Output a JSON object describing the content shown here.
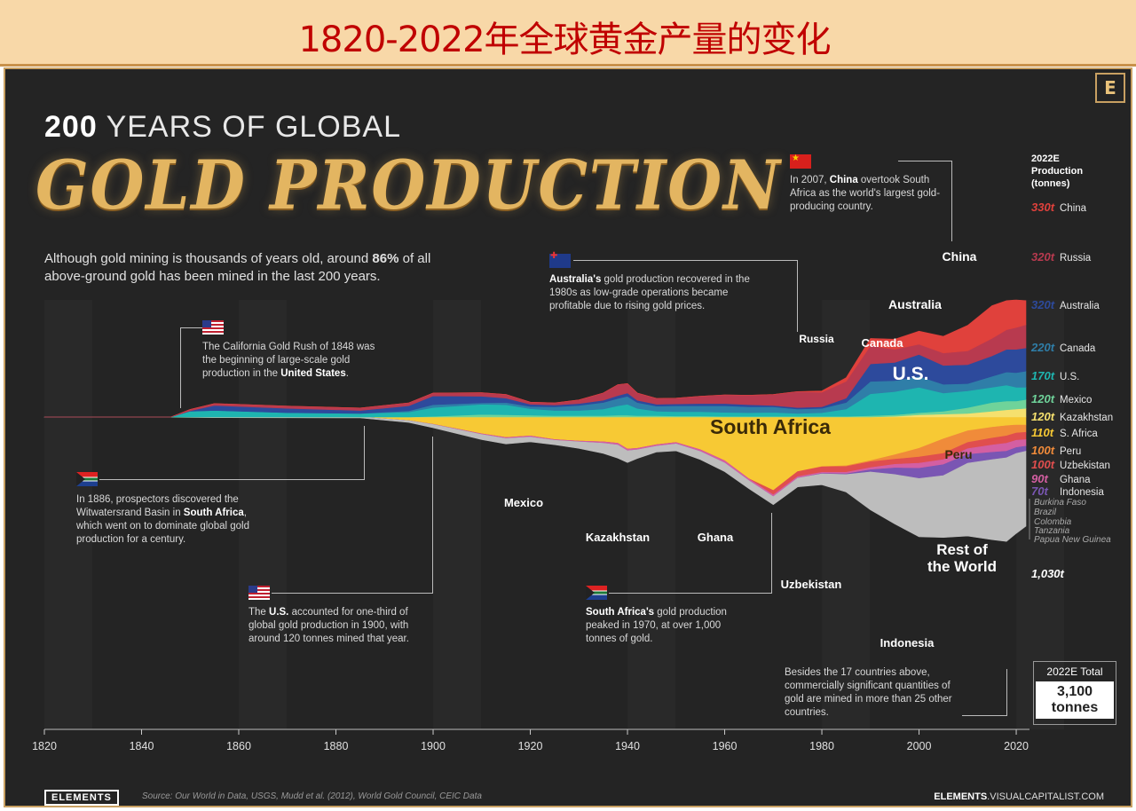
{
  "banner_title": "1820-2022年全球黄金产量的变化",
  "header": {
    "logo_letter": "E",
    "years_bold": "200",
    "years_rest": "YEARS OF GLOBAL",
    "gold_title": "GOLD PRODUCTION"
  },
  "intro": {
    "pre": "Although gold mining is thousands of years old, around ",
    "bold": "86%",
    "post": " of all above-ground gold has been mined in the last 200 years."
  },
  "annotations": {
    "china": {
      "pre": "In 2007, ",
      "bold": "China",
      "post": " overtook South Africa as the world's largest gold-producing country."
    },
    "australia": {
      "bold": "Australia's",
      "post": " gold production recovered in the 1980s as low-grade operations became profitable due to rising gold prices."
    },
    "california": {
      "pre": "The California Gold Rush of 1848 was the beginning of large-scale gold production in the ",
      "bold": "United States",
      "post": "."
    },
    "witwatersrand": {
      "pre": "In 1886, prospectors discovered the Witwatersrand Basin in ",
      "bold": "South Africa",
      "post": ", which went on to dominate global gold production for a century."
    },
    "us1900": {
      "pre": "The ",
      "bold": "U.S.",
      "post": " accounted for one-third of global gold production in 1900, with around 120 tonnes mined that year."
    },
    "sa1970": {
      "bold": "South Africa's",
      "post": " gold production peaked in 1970, at over 1,000 tonnes of gold."
    },
    "others": {
      "text": "Besides the 17 countries above, commercially significant quantities of gold are mined in more than 25 other countries."
    }
  },
  "total": {
    "label": "2022E Total",
    "value": "3,100",
    "unit": "tonnes"
  },
  "footer": {
    "logo": "ELEMENTS",
    "source": "Source: Our World in Data, USGS, Mudd et al. (2012), World Gold Council, CEIC Data",
    "url_bold": "ELEMENTS",
    "url_rest": ".VISUALCAPITALIST.COM"
  },
  "chart_data": {
    "type": "area",
    "title": "GOLD PRODUCTION",
    "xlabel": "",
    "ylabel": "",
    "xlim": [
      1820,
      2022
    ],
    "x_ticks": [
      "1820",
      "1840",
      "1860",
      "1880",
      "1900",
      "1920",
      "1940",
      "1960",
      "1980",
      "2000",
      "2020"
    ],
    "legend_title": "2022E Production (tonnes)",
    "x": [
      1820,
      1846,
      1850,
      1855,
      1870,
      1885,
      1895,
      1900,
      1910,
      1915,
      1920,
      1925,
      1930,
      1935,
      1938,
      1940,
      1942,
      1946,
      1950,
      1955,
      1960,
      1965,
      1970,
      1975,
      1980,
      1985,
      1990,
      1995,
      2000,
      2005,
      2010,
      2015,
      2018,
      2020,
      2022
    ],
    "series": [
      {
        "name": "Rest of the World",
        "color": "#bdbdbd",
        "values": [
          3,
          3,
          5,
          8,
          10,
          12,
          25,
          45,
          70,
          75,
          65,
          60,
          90,
          140,
          180,
          160,
          120,
          80,
          95,
          110,
          120,
          110,
          110,
          120,
          150,
          240,
          520,
          680,
          800,
          850,
          1000,
          1100,
          1150,
          1100,
          1030
        ]
      },
      {
        "name": "Indonesia",
        "color": "#7a56b3",
        "values": [
          0,
          0,
          0,
          0,
          0,
          0,
          0,
          0,
          0,
          0,
          0,
          0,
          0,
          0,
          0,
          0,
          0,
          0,
          0,
          0,
          0,
          0,
          0,
          0,
          5,
          10,
          30,
          90,
          140,
          150,
          120,
          100,
          90,
          80,
          70
        ]
      },
      {
        "name": "Ghana",
        "color": "#d45fa2",
        "values": [
          0,
          0,
          0,
          0,
          0,
          0,
          0,
          3,
          10,
          15,
          15,
          10,
          10,
          20,
          25,
          25,
          20,
          20,
          20,
          25,
          30,
          25,
          25,
          20,
          15,
          20,
          30,
          50,
          70,
          70,
          80,
          100,
          110,
          100,
          90
        ]
      },
      {
        "name": "Uzbekistan",
        "color": "#e04e4e",
        "values": [
          0,
          0,
          0,
          0,
          0,
          0,
          0,
          0,
          0,
          0,
          0,
          0,
          0,
          0,
          0,
          0,
          0,
          0,
          0,
          0,
          0,
          0,
          60,
          70,
          75,
          80,
          80,
          70,
          85,
          85,
          85,
          95,
          100,
          100,
          100
        ]
      },
      {
        "name": "Peru",
        "color": "#f08b3a",
        "values": [
          0,
          0,
          0,
          0,
          0,
          0,
          0,
          0,
          0,
          0,
          0,
          0,
          0,
          0,
          0,
          0,
          0,
          0,
          0,
          0,
          0,
          0,
          0,
          0,
          5,
          10,
          15,
          60,
          120,
          200,
          160,
          150,
          140,
          110,
          100
        ]
      },
      {
        "name": "S. Africa",
        "color": "#f7c934",
        "values": [
          0,
          0,
          0,
          0,
          0,
          0,
          50,
          100,
          230,
          280,
          260,
          310,
          330,
          340,
          360,
          440,
          430,
          380,
          350,
          450,
          600,
          850,
          1010,
          750,
          680,
          670,
          600,
          520,
          430,
          300,
          190,
          140,
          120,
          110,
          110
        ]
      },
      {
        "name": "Kazakhstan",
        "color": "#f5e06e",
        "values": [
          0,
          0,
          0,
          0,
          0,
          0,
          0,
          0,
          0,
          0,
          0,
          0,
          0,
          0,
          0,
          0,
          0,
          0,
          0,
          0,
          0,
          0,
          0,
          0,
          0,
          0,
          0,
          10,
          30,
          40,
          50,
          80,
          100,
          110,
          120
        ]
      },
      {
        "name": "Mexico",
        "color": "#6fd39a",
        "values": [
          0,
          0,
          0,
          0,
          0,
          0,
          0,
          10,
          35,
          30,
          25,
          20,
          20,
          20,
          25,
          25,
          20,
          20,
          15,
          15,
          10,
          10,
          10,
          10,
          10,
          10,
          20,
          20,
          30,
          40,
          80,
          120,
          120,
          110,
          120
        ]
      },
      {
        "name": "U.S.",
        "color": "#1eb5b0",
        "values": [
          0,
          0,
          80,
          90,
          60,
          50,
          70,
          120,
          140,
          140,
          90,
          70,
          70,
          90,
          130,
          150,
          100,
          60,
          60,
          60,
          55,
          50,
          55,
          40,
          50,
          100,
          300,
          320,
          350,
          250,
          230,
          210,
          220,
          190,
          170
        ]
      },
      {
        "name": "Canada",
        "color": "#2f7ea8",
        "values": [
          0,
          0,
          0,
          0,
          0,
          0,
          15,
          40,
          20,
          30,
          30,
          50,
          70,
          90,
          100,
          110,
          80,
          70,
          80,
          80,
          90,
          80,
          75,
          60,
          60,
          90,
          170,
          150,
          150,
          120,
          100,
          150,
          180,
          200,
          220
        ]
      },
      {
        "name": "Australia",
        "color": "#2d4a9c",
        "values": [
          0,
          0,
          5,
          70,
          60,
          40,
          70,
          120,
          90,
          60,
          30,
          25,
          25,
          30,
          40,
          45,
          30,
          25,
          25,
          30,
          30,
          30,
          20,
          20,
          20,
          60,
          240,
          250,
          300,
          260,
          260,
          280,
          310,
          320,
          320
        ]
      },
      {
        "name": "Russia",
        "color": "#b83a4f",
        "values": [
          0,
          0,
          20,
          25,
          30,
          35,
          40,
          40,
          50,
          50,
          30,
          30,
          50,
          100,
          150,
          130,
          100,
          80,
          80,
          100,
          120,
          130,
          150,
          220,
          200,
          230,
          250,
          180,
          140,
          170,
          190,
          240,
          270,
          300,
          320
        ]
      },
      {
        "name": "China",
        "color": "#e0413c",
        "values": [
          0,
          0,
          0,
          0,
          0,
          0,
          0,
          0,
          0,
          0,
          0,
          0,
          0,
          0,
          0,
          0,
          0,
          0,
          0,
          0,
          0,
          0,
          0,
          0,
          20,
          50,
          100,
          140,
          180,
          230,
          350,
          450,
          400,
          380,
          330
        ]
      }
    ],
    "annotations": [
      {
        "label": "China",
        "value": "330t"
      },
      {
        "label": "Russia",
        "value": "320t"
      },
      {
        "label": "Australia",
        "value": "320t"
      },
      {
        "label": "Canada",
        "value": "220t"
      },
      {
        "label": "U.S.",
        "value": "170t"
      },
      {
        "label": "Mexico",
        "value": "120t"
      },
      {
        "label": "Kazakhstan",
        "value": "120t"
      },
      {
        "label": "S. Africa",
        "value": "110t"
      },
      {
        "label": "Peru",
        "value": "100t"
      },
      {
        "label": "Uzbekistan",
        "value": "100t"
      },
      {
        "label": "Ghana",
        "value": "90t"
      },
      {
        "label": "Indonesia",
        "value": "70t"
      },
      {
        "label": "Burkina Faso",
        "value": ""
      },
      {
        "label": "Brazil",
        "value": ""
      },
      {
        "label": "Colombia",
        "value": ""
      },
      {
        "label": "Tanzania",
        "value": ""
      },
      {
        "label": "Papua New Guinea",
        "value": ""
      },
      {
        "label": "",
        "value": "1,030t"
      }
    ],
    "area_labels": {
      "china": "China",
      "russia": "Russia",
      "australia": "Australia",
      "canada": "Canada",
      "us": "U.S.",
      "south_africa": "South Africa",
      "peru": "Peru",
      "rest_l1": "Rest of",
      "rest_l2": "the World",
      "mexico": "Mexico",
      "kazakhstan": "Kazakhstan",
      "ghana": "Ghana",
      "uzbekistan": "Uzbekistan",
      "indonesia": "Indonesia"
    }
  }
}
